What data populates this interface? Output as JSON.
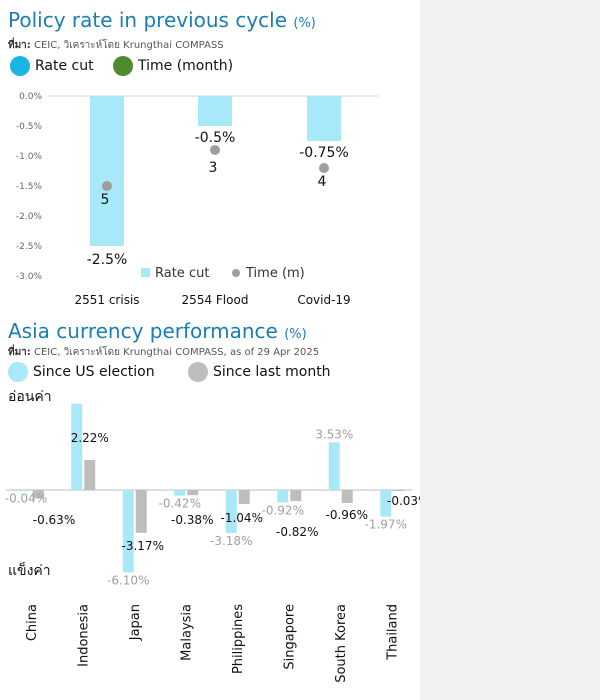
{
  "colors": {
    "accent": "#1a7fb0",
    "light_blue": "#a8e8f8",
    "gray_bar": "#bdbdbd",
    "gray_dot": "#9e9e9e",
    "green_dot": "#4e8a2e",
    "cyan_dot": "#19b4e8"
  },
  "chart_data": [
    {
      "type": "bar",
      "title": "Policy rate in previous cycle",
      "title_unit": "(%)",
      "source_label": "ที่มา:",
      "source": "CEIC, วิเคราะห์โดย Krungthai COMPASS",
      "legend_top": [
        {
          "label": "Rate cut",
          "color": "#19b4e8"
        },
        {
          "label": "Time (month)",
          "color": "#4e8a2e"
        }
      ],
      "legend_inner": [
        {
          "label": "Rate cut",
          "color": "#a8e8f8"
        },
        {
          "label": "Time (m)",
          "color": "#9e9e9e"
        }
      ],
      "categories": [
        "2551 crisis",
        "2554 Flood",
        "Covid-19"
      ],
      "series": [
        {
          "name": "Rate cut",
          "values": [
            -2.5,
            -0.5,
            -0.75
          ],
          "labels": [
            "-2.5%",
            "-0.5%",
            "-0.75%"
          ]
        },
        {
          "name": "Time (m)",
          "values": [
            5,
            3,
            4
          ],
          "labels": [
            "5",
            "3",
            "4"
          ]
        }
      ],
      "ylim": [
        -3.0,
        0.0
      ],
      "yticks": [
        0.0,
        -0.5,
        -1.0,
        -1.5,
        -2.0,
        -2.5,
        -3.0
      ],
      "ytick_labels": [
        "0.0%",
        "-0.5%",
        "-1.0%",
        "-1.5%",
        "-2.0%",
        "-2.5%",
        "-3.0%"
      ]
    },
    {
      "type": "bar",
      "title": "Asia currency performance",
      "title_unit": "(%)",
      "source_label": "ที่มา:",
      "source": "CEIC, วิเคราะห์โดย Krungthai COMPASS, as of 29 Apr 2025",
      "legend": [
        {
          "label": "Since US election",
          "color": "#a8e8f8"
        },
        {
          "label": "Since last month",
          "color": "#bdbdbd"
        }
      ],
      "upper_label": "อ่อนค่า",
      "lower_label": "แข็งค่า",
      "categories": [
        "China",
        "Indonesia",
        "Japan",
        "Malaysia",
        "Philippines",
        "Singapore",
        "South Korea",
        "Thailand"
      ],
      "series": [
        {
          "name": "Since US election",
          "values": [
            -0.04,
            6.39,
            -6.1,
            -0.42,
            -3.18,
            -0.92,
            3.53,
            -1.97
          ],
          "labels": [
            "-0.04%",
            "6.39%",
            "-6.10%",
            "-0.42%",
            "-3.18%",
            "-0.92%",
            "3.53%",
            "-1.97%"
          ]
        },
        {
          "name": "Since last month",
          "values": [
            -0.63,
            2.22,
            -3.17,
            -0.38,
            -1.04,
            -0.82,
            -0.96,
            -0.03
          ],
          "labels": [
            "-0.63%",
            "2.22%",
            "-3.17%",
            "-0.38%",
            "-1.04%",
            "-0.82%",
            "-0.96%",
            "-0.03%"
          ]
        }
      ],
      "ylim": [
        -7,
        7
      ]
    }
  ]
}
